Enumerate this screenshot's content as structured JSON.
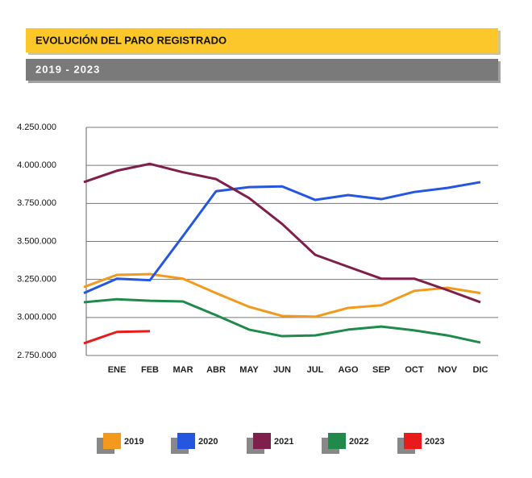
{
  "chart_data": {
    "type": "line",
    "title": "EVOLUCIÓN DEL PARO REGISTRADO",
    "subtitle": "2019 - 2023",
    "categories": [
      null,
      "ENE",
      "FEB",
      "MAR",
      "ABR",
      "MAY",
      "JUN",
      "JUL",
      "AGO",
      "SEP",
      "OCT",
      "NOV",
      "DIC"
    ],
    "ylim": [
      2750000,
      4250000
    ],
    "yticks": [
      {
        "value": 2750000,
        "label": "2.750.000"
      },
      {
        "value": 3000000,
        "label": "3.000.000"
      },
      {
        "value": 3250000,
        "label": "3.250.000"
      },
      {
        "value": 3500000,
        "label": "3.500.000"
      },
      {
        "value": 3750000,
        "label": "3.750.000"
      },
      {
        "value": 4000000,
        "label": "4.000.000"
      },
      {
        "value": 4250000,
        "label": "4.250.000"
      }
    ],
    "grid": true,
    "legend": "bottom",
    "series": [
      {
        "name": "2019",
        "color": "#f39a1e",
        "values": [
          3200000,
          3280000,
          3285000,
          3255000,
          3160000,
          3070000,
          3010000,
          3005000,
          3063000,
          3080000,
          3175000,
          3195000,
          3160000
        ]
      },
      {
        "name": "2020",
        "color": "#2456e0",
        "values": [
          3160000,
          3255000,
          3245000,
          3535000,
          3830000,
          3857000,
          3862000,
          3773000,
          3805000,
          3778000,
          3825000,
          3852000,
          3890000
        ]
      },
      {
        "name": "2021",
        "color": "#7e1f4c",
        "values": [
          3890000,
          3965000,
          4010000,
          3955000,
          3910000,
          3785000,
          3615000,
          3412000,
          3333000,
          3255000,
          3255000,
          3180000,
          3100000
        ]
      },
      {
        "name": "2022",
        "color": "#1f8a4a",
        "values": [
          3100000,
          3120000,
          3110000,
          3105000,
          3015000,
          2920000,
          2877000,
          2882000,
          2920000,
          2940000,
          2915000,
          2882000,
          2835000
        ]
      },
      {
        "name": "2023",
        "color": "#e81a1a",
        "values": [
          2830000,
          2905000,
          2910000,
          null,
          null,
          null,
          null,
          null,
          null,
          null,
          null,
          null,
          null
        ]
      }
    ]
  }
}
